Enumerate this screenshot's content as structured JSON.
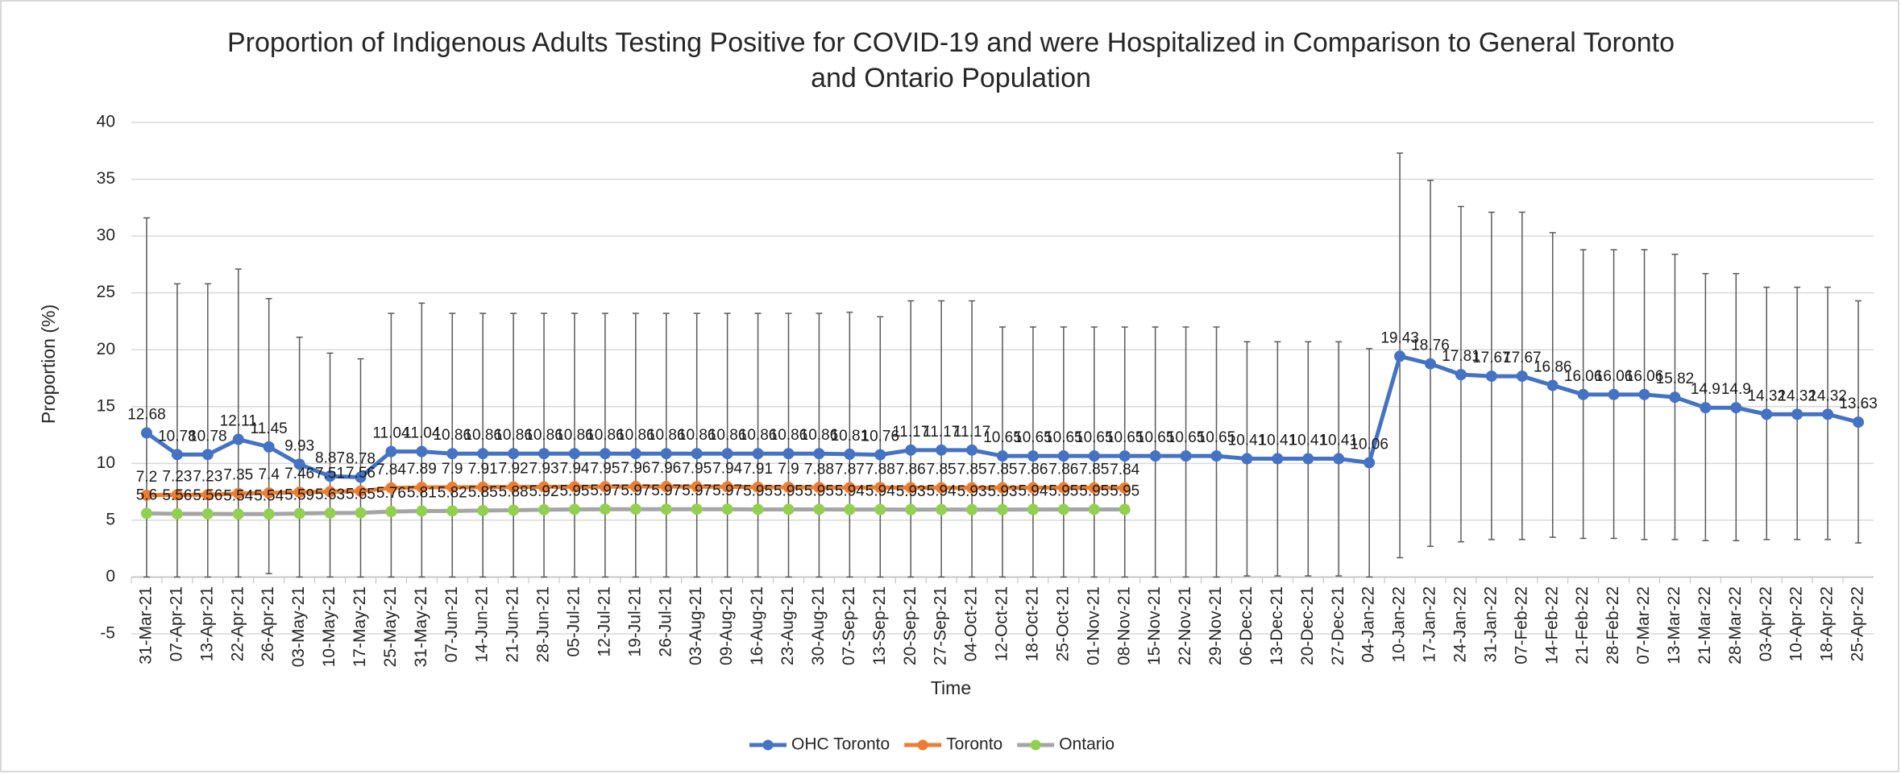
{
  "chart_data": {
    "type": "line",
    "title": [
      "Proportion of Indigenous Adults Testing Positive for COVID-19 and were Hospitalized in Comparison to General Toronto",
      "and Ontario Population"
    ],
    "x_label": "Time",
    "y_label": "Proportion (%)",
    "categories": [
      "31-Mar-21",
      "07-Apr-21",
      "13-Apr-21",
      "22-Apr-21",
      "26-Apr-21",
      "03-May-21",
      "10-May-21",
      "17-May-21",
      "25-May-21",
      "31-May-21",
      "07-Jun-21",
      "14-Jun-21",
      "21-Jun-21",
      "28-Jun-21",
      "05-Jul-21",
      "12-Jul-21",
      "19-Jul-21",
      "26-Jul-21",
      "03-Aug-21",
      "09-Aug-21",
      "16-Aug-21",
      "23-Aug-21",
      "30-Aug-21",
      "07-Sep-21",
      "13-Sep-21",
      "20-Sep-21",
      "27-Sep-21",
      "04-Oct-21",
      "12-Oct-21",
      "18-Oct-21",
      "25-Oct-21",
      "01-Nov-21",
      "08-Nov-21",
      "15-Nov-21",
      "22-Nov-21",
      "29-Nov-21",
      "06-Dec-21",
      "13-Dec-21",
      "20-Dec-21",
      "27-Dec-21",
      "04-Jan-22",
      "10-Jan-22",
      "17-Jan-22",
      "24-Jan-22",
      "31-Jan-22",
      "07-Feb-22",
      "14-Feb-22",
      "21-Feb-22",
      "28-Feb-22",
      "07-Mar-22",
      "13-Mar-22",
      "21-Mar-22",
      "28-Mar-22",
      "03-Apr-22",
      "10-Apr-22",
      "18-Apr-22",
      "25-Apr-22"
    ],
    "series": [
      {
        "name": "OHC Toronto",
        "color": "#4472c4",
        "values": [
          12.68,
          10.78,
          10.78,
          12.11,
          11.45,
          9.93,
          8.87,
          8.78,
          11.04,
          11.04,
          10.86,
          10.86,
          10.86,
          10.86,
          10.86,
          10.86,
          10.86,
          10.86,
          10.86,
          10.86,
          10.86,
          10.86,
          10.86,
          10.81,
          10.76,
          11.17,
          11.17,
          11.17,
          10.65,
          10.65,
          10.65,
          10.65,
          10.65,
          10.65,
          10.65,
          10.65,
          10.41,
          10.41,
          10.41,
          10.41,
          10.06,
          19.43,
          18.76,
          17.81,
          17.67,
          17.67,
          16.86,
          16.06,
          16.06,
          16.06,
          15.82,
          14.9,
          14.9,
          14.32,
          14.32,
          14.32,
          13.63
        ],
        "upper": [
          31.6,
          25.8,
          25.8,
          27.1,
          24.5,
          21.1,
          19.7,
          19.2,
          23.2,
          24.1,
          23.2,
          23.2,
          23.2,
          23.2,
          23.2,
          23.2,
          23.2,
          23.2,
          23.2,
          23.2,
          23.2,
          23.2,
          23.2,
          23.3,
          22.9,
          24.3,
          24.3,
          24.3,
          22,
          22,
          22,
          22,
          22,
          22,
          22,
          22,
          20.7,
          20.7,
          20.7,
          20.7,
          20.1,
          37.3,
          34.9,
          32.6,
          32.1,
          32.1,
          30.3,
          28.8,
          28.8,
          28.8,
          28.4,
          26.7,
          26.7,
          25.5,
          25.5,
          25.5,
          24.3
        ],
        "lower": [
          0,
          0,
          0,
          0,
          0.3,
          0,
          0,
          0,
          0,
          0,
          0,
          0,
          0,
          0,
          0,
          0,
          0,
          0,
          0,
          0,
          0,
          0,
          0,
          0,
          0,
          0,
          0,
          0,
          0,
          0,
          0,
          0,
          0,
          0,
          0,
          0,
          0.1,
          0.1,
          0.1,
          0.1,
          0,
          1.7,
          2.7,
          3.1,
          3.3,
          3.3,
          3.5,
          3.4,
          3.4,
          3.3,
          3.3,
          3.2,
          3.2,
          3.3,
          3.3,
          3.3,
          3
        ]
      },
      {
        "name": "Toronto",
        "color": "#ed7d31",
        "values": [
          7.2,
          7.23,
          7.23,
          7.35,
          7.4,
          7.46,
          7.51,
          7.56,
          7.84,
          7.89,
          7.9,
          7.91,
          7.92,
          7.93,
          7.94,
          7.95,
          7.96,
          7.96,
          7.95,
          7.94,
          7.91,
          7.9,
          7.88,
          7.87,
          7.88,
          7.86,
          7.85,
          7.85,
          7.85,
          7.86,
          7.86,
          7.85,
          7.84,
          null,
          null,
          null,
          null,
          null,
          null,
          null,
          null,
          null,
          null,
          null,
          null,
          null,
          null,
          null,
          null,
          null,
          null,
          null,
          null,
          null,
          null,
          null,
          null
        ]
      },
      {
        "name": "Ontario",
        "color": "#a5a5a5",
        "marker_color": "#92d050",
        "values": [
          5.6,
          5.56,
          5.56,
          5.54,
          5.54,
          5.59,
          5.63,
          5.65,
          5.76,
          5.81,
          5.82,
          5.85,
          5.88,
          5.92,
          5.95,
          5.97,
          5.97,
          5.97,
          5.97,
          5.97,
          5.95,
          5.95,
          5.95,
          5.94,
          5.94,
          5.93,
          5.94,
          5.93,
          5.93,
          5.94,
          5.95,
          5.95,
          5.95,
          null,
          null,
          null,
          null,
          null,
          null,
          null,
          null,
          null,
          null,
          null,
          null,
          null,
          null,
          null,
          null,
          null,
          null,
          null,
          null,
          null,
          null,
          null,
          null
        ]
      }
    ],
    "ylim": [
      -5,
      40
    ],
    "yticks": [
      -5,
      0,
      5,
      10,
      15,
      20,
      25,
      30,
      35,
      40
    ],
    "grid": true,
    "legend": "bottom"
  }
}
